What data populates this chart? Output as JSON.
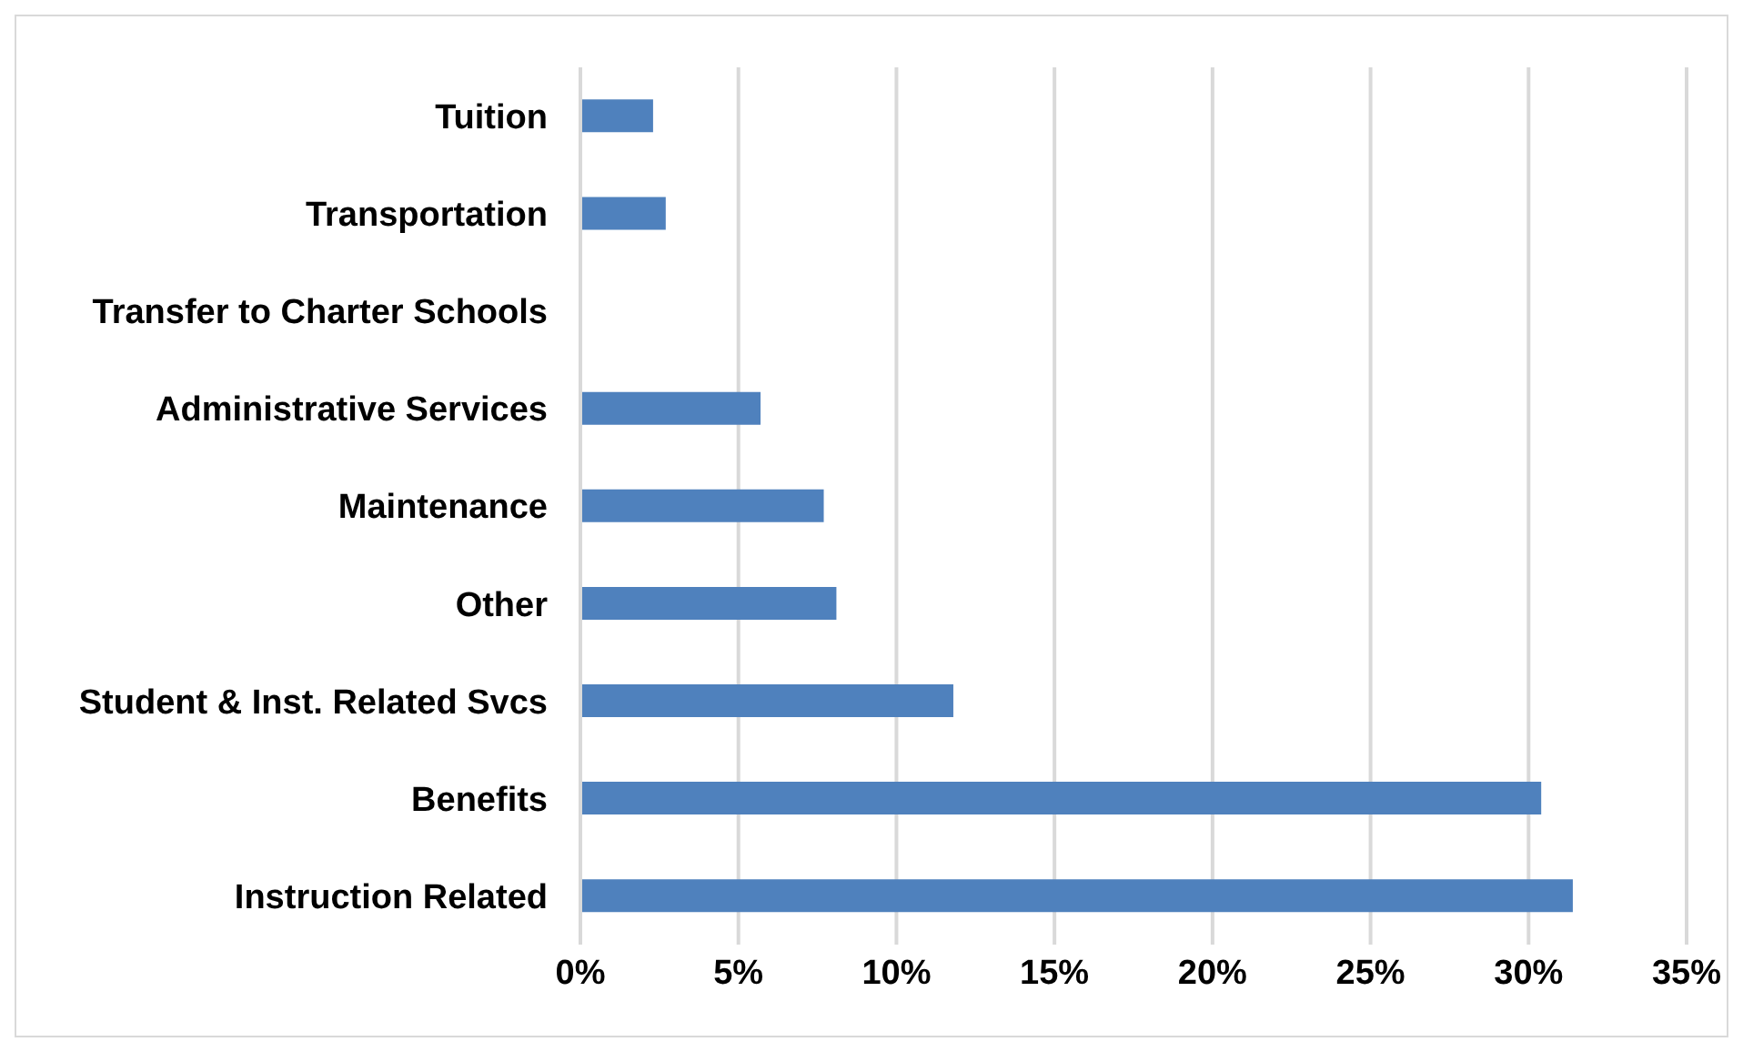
{
  "chart_data": {
    "type": "bar",
    "orientation": "horizontal",
    "categories": [
      "Tuition",
      "Transportation",
      "Transfer to Charter Schools",
      "Administrative Services",
      "Maintenance",
      "Other",
      "Student & Inst. Related Svcs",
      "Benefits",
      "Instruction Related"
    ],
    "values": [
      2.3,
      2.7,
      0,
      5.7,
      7.7,
      8.1,
      11.8,
      30.4,
      31.4
    ],
    "color": "#4f81bd",
    "xlim": [
      0,
      35
    ],
    "xticks": [
      {
        "value": 0,
        "label": "0%"
      },
      {
        "value": 5,
        "label": "5%"
      },
      {
        "value": 10,
        "label": "10%"
      },
      {
        "value": 15,
        "label": "15%"
      },
      {
        "value": 20,
        "label": "20%"
      },
      {
        "value": 25,
        "label": "25%"
      },
      {
        "value": 30,
        "label": "30%"
      },
      {
        "value": 35,
        "label": "35%"
      }
    ],
    "grid": "x",
    "legend": false
  }
}
